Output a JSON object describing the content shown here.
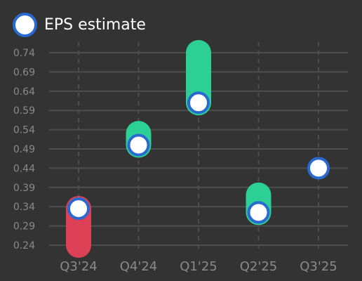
{
  "legend": {
    "label": "EPS estimate"
  },
  "chart_data": {
    "type": "dumbbell",
    "categories": [
      "Q3'24",
      "Q4'24",
      "Q1'25",
      "Q2'25",
      "Q3'25"
    ],
    "series": [
      {
        "name": "EPS estimate",
        "values": [
          0.335,
          0.5,
          0.61,
          0.325,
          0.44
        ]
      },
      {
        "values": [
          0.24,
          0.53,
          0.74,
          0.37,
          null
        ]
      }
    ],
    "y_ticks": [
      "0.24",
      "0.29",
      "0.34",
      "0.39",
      "0.44",
      "0.49",
      "0.54",
      "0.59",
      "0.64",
      "0.69",
      "0.74"
    ],
    "ylim": [
      0.24,
      0.74
    ],
    "grid": true,
    "legend_position": "top-left",
    "colors": {
      "beat": "#2ccf96",
      "miss": "#dc4155",
      "marker_fill": "#ffffff",
      "marker_stroke": "#2a6ad0",
      "grid": "#4e4e4e",
      "tick_label": "#8a8a8a"
    }
  }
}
